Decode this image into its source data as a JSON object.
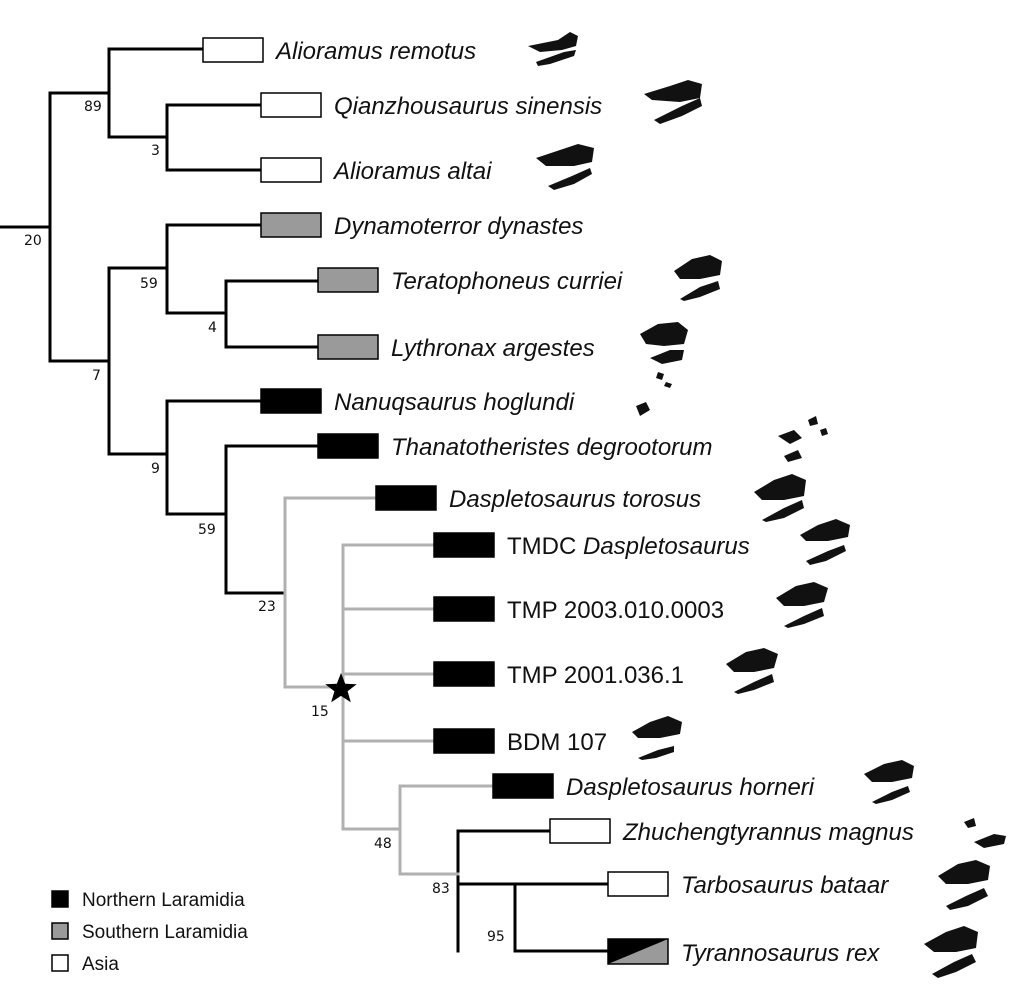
{
  "colors": {
    "northern_laramidia": "#000000",
    "southern_laramidia": "#9a9a9a",
    "asia": "#ffffff",
    "branch_main": "#000000",
    "branch_clade": "#b0b0b0"
  },
  "taxa": [
    {
      "id": "alioramus-remotus",
      "region": "asia",
      "italic": true,
      "label": "Alioramus remotus"
    },
    {
      "id": "qianzhousaurus-sinensis",
      "region": "asia",
      "italic": true,
      "label": "Qianzhousaurus sinensis"
    },
    {
      "id": "alioramus-altai",
      "region": "asia",
      "italic": true,
      "label": "Alioramus altai"
    },
    {
      "id": "dynamoterror-dynastes",
      "region": "southern_laramidia",
      "italic": true,
      "label": "Dynamoterror dynastes"
    },
    {
      "id": "teratophoneus-curriei",
      "region": "southern_laramidia",
      "italic": true,
      "label": "Teratophoneus curriei"
    },
    {
      "id": "lythronax-argestes",
      "region": "southern_laramidia",
      "italic": true,
      "label": "Lythronax argestes"
    },
    {
      "id": "nanuqsaurus-hoglundi",
      "region": "northern_laramidia",
      "italic": true,
      "label": "Nanuqsaurus hoglundi"
    },
    {
      "id": "thanatotheristes-degrootorum",
      "region": "northern_laramidia",
      "italic": true,
      "label": "Thanatotheristes degrootorum"
    },
    {
      "id": "daspletosaurus-torosus",
      "region": "northern_laramidia",
      "italic": true,
      "label": "Daspletosaurus torosus"
    },
    {
      "id": "tmdc-daspletosaurus",
      "region": "northern_laramidia",
      "italic": false,
      "label": "TMDC",
      "label_italic": "Daspletosaurus"
    },
    {
      "id": "tmp-2003-010-0003",
      "region": "northern_laramidia",
      "italic": false,
      "label": "TMP 2003.010.0003"
    },
    {
      "id": "tmp-2001-036-1",
      "region": "northern_laramidia",
      "italic": false,
      "label": "TMP 2001.036.1"
    },
    {
      "id": "bdm-107",
      "region": "northern_laramidia",
      "italic": false,
      "label": "BDM 107"
    },
    {
      "id": "daspletosaurus-horneri",
      "region": "northern_laramidia",
      "italic": true,
      "label": "Daspletosaurus horneri"
    },
    {
      "id": "zhuchengtyrannus-magnus",
      "region": "asia",
      "italic": true,
      "label": "Zhuchengtyrannus magnus"
    },
    {
      "id": "tarbosaurus-bataar",
      "region": "asia",
      "italic": true,
      "label": "Tarbosaurus bataar"
    },
    {
      "id": "tyrannosaurus-rex",
      "region": "northern_laramidia+southern_laramidia",
      "italic": true,
      "label": "Tyrannosaurus rex"
    }
  ],
  "nodes": [
    {
      "id": "n-root",
      "support": "20"
    },
    {
      "id": "n-alioramini",
      "support": "89"
    },
    {
      "id": "n-qian-altai",
      "support": "3"
    },
    {
      "id": "n-rest",
      "support": "7"
    },
    {
      "id": "n-southern",
      "support": "59"
    },
    {
      "id": "n-tera-lythro",
      "support": "4"
    },
    {
      "id": "n-nanuq-plus",
      "support": "9"
    },
    {
      "id": "n-thanato-plus",
      "support": "59"
    },
    {
      "id": "n-dasp-plus",
      "support": "23"
    },
    {
      "id": "n-star",
      "support": "15"
    },
    {
      "id": "n-horneri-plus",
      "support": "48"
    },
    {
      "id": "n-tyrannosaurini",
      "support": "83"
    },
    {
      "id": "n-tarbo-trex",
      "support": "95"
    }
  ],
  "legend": [
    {
      "region": "northern_laramidia",
      "label": "Northern Laramidia"
    },
    {
      "region": "southern_laramidia",
      "label": "Southern Laramidia"
    },
    {
      "region": "asia",
      "label": "Asia"
    }
  ]
}
